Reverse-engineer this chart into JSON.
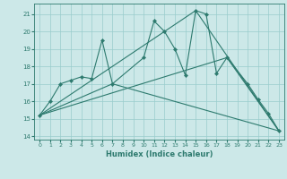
{
  "xlabel": "Humidex (Indice chaleur)",
  "bg_color": "#cce8e8",
  "grid_color": "#99cccc",
  "line_color": "#2d7a6e",
  "xlim": [
    -0.5,
    23.5
  ],
  "ylim": [
    13.8,
    21.6
  ],
  "yticks": [
    14,
    15,
    16,
    17,
    18,
    19,
    20,
    21
  ],
  "xticks": [
    0,
    1,
    2,
    3,
    4,
    5,
    6,
    7,
    8,
    9,
    10,
    11,
    12,
    13,
    14,
    15,
    16,
    17,
    18,
    19,
    20,
    21,
    22,
    23
  ],
  "main_series": {
    "x": [
      0,
      1,
      2,
      3,
      4,
      5,
      6,
      7,
      10,
      11,
      12,
      13,
      14,
      15,
      16,
      17,
      18,
      20,
      21,
      22,
      23
    ],
    "y": [
      15.2,
      16.0,
      17.0,
      17.2,
      17.4,
      17.3,
      19.5,
      17.0,
      18.5,
      20.6,
      20.0,
      19.0,
      17.5,
      21.2,
      21.0,
      17.6,
      18.5,
      17.0,
      16.1,
      15.3,
      14.3
    ]
  },
  "straight_lines": [
    {
      "x": [
        0,
        7,
        23
      ],
      "y": [
        15.2,
        17.0,
        14.3
      ]
    },
    {
      "x": [
        0,
        18,
        23
      ],
      "y": [
        15.2,
        18.5,
        14.3
      ]
    },
    {
      "x": [
        0,
        15,
        23
      ],
      "y": [
        15.2,
        21.2,
        14.3
      ]
    }
  ]
}
